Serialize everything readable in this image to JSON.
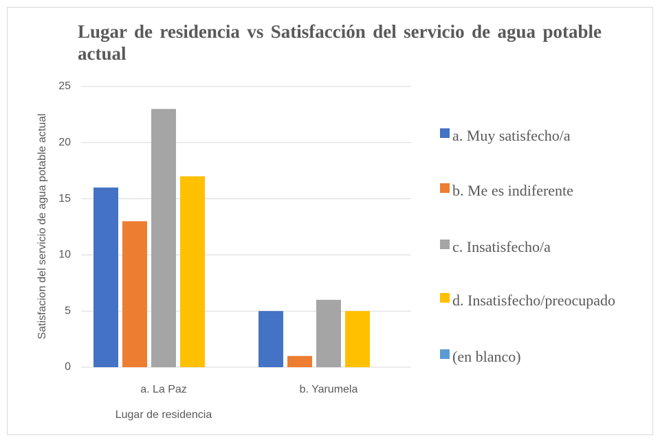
{
  "chart_data": {
    "type": "bar",
    "title": "Lugar de residencia vs Satisfacción del servicio de agua potable actual",
    "x_label": "Lugar de residencia",
    "y_label": "Satisfacion del servicio de agua potable actual",
    "categories": [
      "a. La Paz",
      "b. Yarumela"
    ],
    "series": [
      {
        "name": "a. Muy satisfecho/a",
        "color": "#4472c4",
        "values": [
          16,
          5
        ]
      },
      {
        "name": "b. Me es indiferente",
        "color": "#ed7d31",
        "values": [
          13,
          1
        ]
      },
      {
        "name": "c. Insatisfecho/a",
        "color": "#a5a5a5",
        "values": [
          23,
          6
        ]
      },
      {
        "name": "d. Insatisfecho/preocupado",
        "color": "#ffc000",
        "values": [
          17,
          5
        ]
      },
      {
        "name": "(en blanco)",
        "color": "#5b9bd5",
        "values": [
          null,
          null
        ]
      }
    ],
    "ylim": [
      0,
      25
    ],
    "yticks": [
      0,
      5,
      10,
      15,
      20,
      25
    ],
    "grid": true,
    "legend": "right"
  }
}
